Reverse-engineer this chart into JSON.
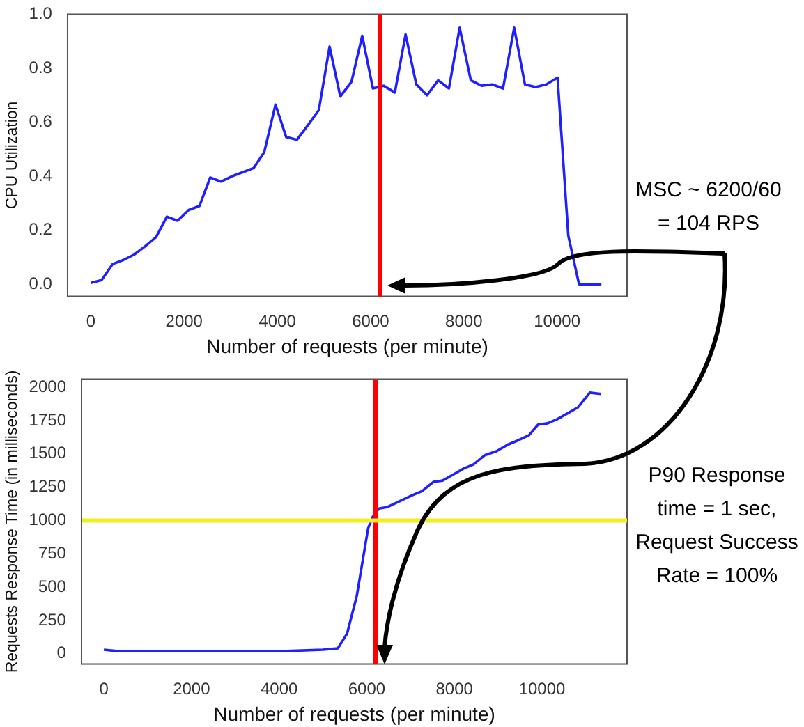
{
  "chart_data": [
    {
      "type": "line",
      "xlabel": "Number of requests (per minute)",
      "ylabel": "CPU Utilization",
      "xlim": [
        -500,
        11500
      ],
      "ylim": [
        -0.045,
        1.0
      ],
      "xticks": [
        0,
        2000,
        4000,
        6000,
        8000,
        10000
      ],
      "yticks": [
        {
          "value": 0,
          "label": "0.0"
        },
        {
          "value": 0.2,
          "label": "0.2"
        },
        {
          "value": 0.4,
          "label": "0.4"
        },
        {
          "value": 0.6,
          "label": "0.6"
        },
        {
          "value": 0.8,
          "label": "0.8"
        },
        {
          "value": 1,
          "label": "1.0"
        }
      ],
      "grid": false,
      "legend": false,
      "marker": "none",
      "series": [
        {
          "color": "#2020ff",
          "x": [
            0,
            230,
            470,
            700,
            930,
            1160,
            1400,
            1630,
            1860,
            2100,
            2330,
            2560,
            2790,
            3030,
            3260,
            3490,
            3720,
            3960,
            4190,
            4420,
            4660,
            4890,
            5120,
            5350,
            5590,
            5820,
            6050,
            6280,
            6520,
            6750,
            6980,
            7210,
            7450,
            7680,
            7910,
            8150,
            8380,
            8610,
            8840,
            9080,
            9310,
            9540,
            9770,
            10010,
            10240,
            10470,
            10950
          ],
          "values": [
            0.005,
            0.015,
            0.075,
            0.09,
            0.11,
            0.14,
            0.175,
            0.25,
            0.235,
            0.275,
            0.29,
            0.395,
            0.38,
            0.4,
            0.415,
            0.43,
            0.49,
            0.665,
            0.545,
            0.535,
            0.59,
            0.645,
            0.88,
            0.695,
            0.75,
            0.92,
            0.725,
            0.735,
            0.71,
            0.925,
            0.74,
            0.7,
            0.755,
            0.725,
            0.95,
            0.755,
            0.735,
            0.74,
            0.725,
            0.95,
            0.74,
            0.73,
            0.74,
            0.765,
            0.18,
            0.0,
            0.0
          ]
        }
      ],
      "ref_lines": [
        {
          "axis": "x",
          "value": 6200,
          "color": "#ff0000"
        }
      ],
      "annotations": [
        "MSC  ~ 6200/60\n= 104 RPS"
      ]
    },
    {
      "type": "line",
      "xlabel": "Number of requests (per minute)",
      "ylabel": "Requests Response Time (in milliseconds)",
      "xlim": [
        -510,
        11940
      ],
      "ylim": [
        -78,
        2062
      ],
      "xticks": [
        0,
        2000,
        4000,
        6000,
        8000,
        10000
      ],
      "yticks": [
        0,
        250,
        500,
        750,
        1000,
        1250,
        1500,
        1750,
        2000
      ],
      "grid": false,
      "legend": false,
      "marker": "none",
      "series": [
        {
          "color": "#2020ff",
          "x": [
            0,
            290,
            1000,
            2000,
            3000,
            4170,
            5000,
            5340,
            5550,
            5770,
            6030,
            6140,
            6280,
            6460,
            6720,
            7040,
            7260,
            7520,
            7730,
            8000,
            8210,
            8430,
            8690,
            8960,
            9220,
            9440,
            9700,
            9910,
            10130,
            10340,
            10610,
            10820,
            11090,
            11350
          ],
          "values": [
            30,
            20,
            20,
            20,
            20,
            20,
            30,
            40,
            150,
            430,
            940,
            1030,
            1090,
            1100,
            1140,
            1190,
            1220,
            1290,
            1300,
            1350,
            1390,
            1420,
            1490,
            1520,
            1570,
            1600,
            1640,
            1720,
            1730,
            1760,
            1810,
            1850,
            1960,
            1950
          ]
        }
      ],
      "ref_lines": [
        {
          "axis": "x",
          "value": 6200,
          "color": "#ff0000"
        },
        {
          "axis": "y",
          "value": 1000,
          "color": "#f0f020"
        }
      ],
      "annotations": [
        "P90 Response time = 1 sec, Request Success Rate = 100%"
      ]
    }
  ]
}
